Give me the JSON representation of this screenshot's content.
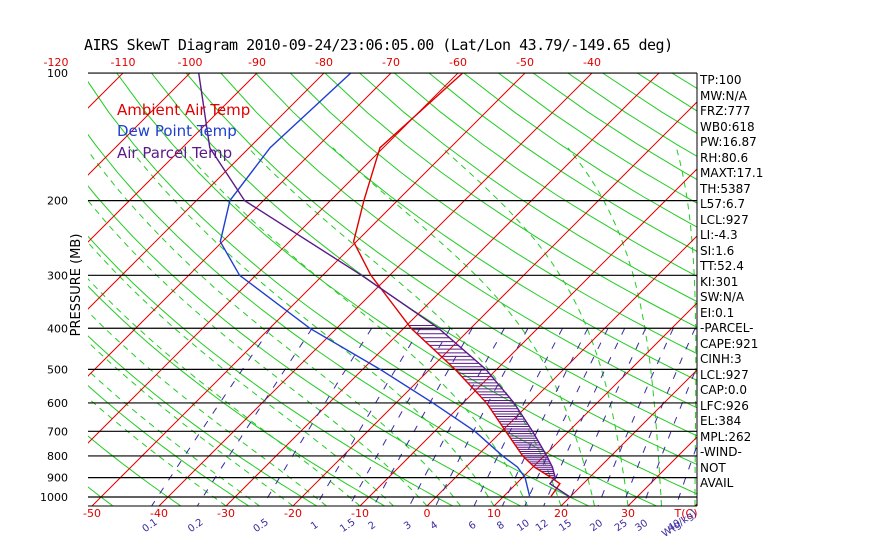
{
  "title": "AIRS SkewT Diagram 2010-09-24/23:06:05.00 (Lat/Lon 43.79/-149.65 deg)",
  "legend": [
    {
      "label": "Ambient Air Temp",
      "color": "#e00000"
    },
    {
      "label": "Dew Point Temp",
      "color": "#1f3fcf"
    },
    {
      "label": "Air Parcel Temp",
      "color": "#5a1a8a"
    }
  ],
  "indices": [
    "TP:100",
    "MW:N/A",
    "FRZ:777",
    "WB0:618",
    "PW:16.87",
    "RH:80.6",
    "MAXT:17.1",
    "TH:5387",
    "L57:6.7",
    "LCL:927",
    "LI:-4.3",
    "SI:1.6",
    "TT:52.4",
    "KI:301",
    "SW:N/A",
    "EI:0.1",
    "-PARCEL-",
    "CAPE:921",
    "CINH:3",
    "LCL:927",
    "CAP:0.0",
    "LFC:926",
    "EL:384",
    "MPL:262",
    "-WIND-",
    "NOT",
    "AVAIL"
  ],
  "colors": {
    "isotherm": "#e00000",
    "dry_adiabat": "#22cc22",
    "moist_adiabat": "#22cc22",
    "mixing_ratio": "#3a2aa0",
    "hatch": "#5a1a8a"
  },
  "chart_data": {
    "type": "line",
    "ylabel": "PRESSURE (MB)",
    "xlabel_bottom": "T(C)",
    "xlabel_mixing": "W(g/kg)",
    "pressure_levels": [
      100,
      200,
      300,
      400,
      500,
      600,
      700,
      800,
      900,
      1000
    ],
    "pressure_tick_labels": [
      "100",
      "200",
      "300",
      "400",
      "500",
      "600",
      "700",
      "800",
      "900",
      "1000"
    ],
    "pressure_range": [
      100,
      1050
    ],
    "bottom_temp_ticks": [
      "-50",
      "-40",
      "-30",
      "-20",
      "-10",
      "0",
      "10",
      "20",
      "30"
    ],
    "top_temp_ticks": [
      "-120",
      "-110",
      "-100",
      "-90",
      "-80",
      "-70",
      "-60",
      "-50",
      "-40"
    ],
    "mixing_ratio_ticks": [
      "0.1",
      "0.2",
      "0.5",
      "1",
      "1.5",
      "2",
      "3",
      "4",
      "6",
      "8",
      "10",
      "12",
      "15",
      "20",
      "25",
      "30",
      "40"
    ],
    "mixing_ratio_values": [
      0.1,
      0.2,
      0.5,
      1,
      1.5,
      2,
      3,
      4,
      6,
      8,
      10,
      12,
      15,
      20,
      25,
      30,
      40
    ],
    "series": [
      {
        "name": "Ambient Air Temp",
        "p": [
          1000,
          930,
          900,
          850,
          800,
          700,
          600,
          500,
          400,
          300,
          250,
          200,
          150,
          100
        ],
        "t": [
          17.1,
          16.5,
          14.3,
          10.2,
          6.8,
          0.6,
          -6.5,
          -16.2,
          -28.9,
          -42.8,
          -50.4,
          -55.0,
          -60.5,
          -59.3
        ]
      },
      {
        "name": "Dew Point Temp",
        "p": [
          1000,
          900,
          850,
          800,
          700,
          600,
          500,
          400,
          300,
          250,
          200,
          150,
          100
        ],
        "t": [
          14.0,
          10.4,
          7.7,
          3.8,
          -4.0,
          -14.5,
          -27.4,
          -44.0,
          -62.4,
          -70.3,
          -75.0,
          -76.9,
          -76.0
        ]
      },
      {
        "name": "Air Parcel Temp",
        "p": [
          1000,
          930,
          900,
          850,
          800,
          700,
          600,
          500,
          400,
          300,
          200,
          150,
          100
        ],
        "t": [
          20.0,
          15.0,
          14.9,
          12.9,
          10.4,
          4.6,
          -2.4,
          -11.6,
          -24.8,
          -44.2,
          -72.8,
          -85.9,
          -98.7
        ]
      }
    ]
  }
}
